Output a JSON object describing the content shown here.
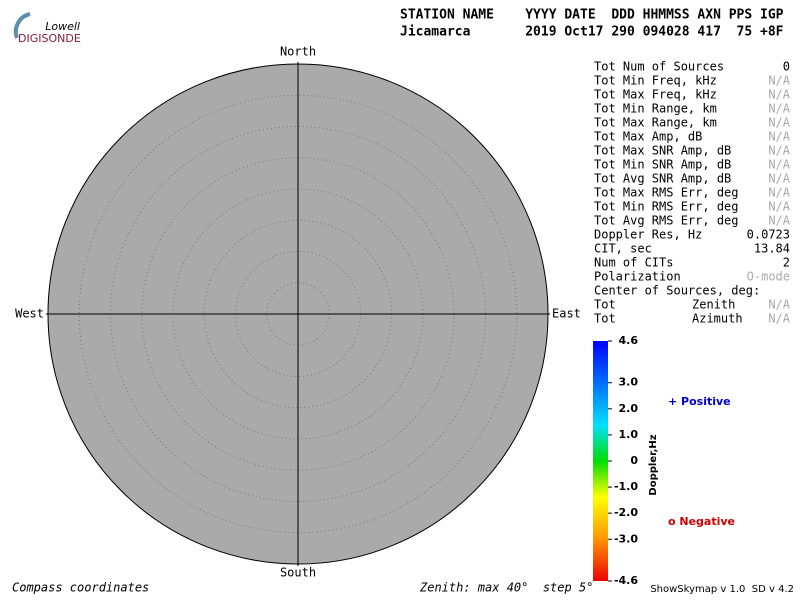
{
  "logo": {
    "line1": "Lowell",
    "line2": "DIGISONDE"
  },
  "header": {
    "labels": "STATION NAME    YYYY DATE  DDD HHMMSS AXN PPS IGP",
    "values": "Jicamarca       2019 Oct17 290 094028 417  75 +8F"
  },
  "compass": {
    "north": "North",
    "south": "South",
    "east": "East",
    "west": "West"
  },
  "stats": [
    {
      "label": "Tot Num of Sources",
      "value": "0"
    },
    {
      "label": "Tot Min Freq, kHz",
      "value": "N/A"
    },
    {
      "label": "Tot Max Freq, kHz",
      "value": "N/A"
    },
    {
      "label": "Tot Min Range, km",
      "value": "N/A"
    },
    {
      "label": "Tot Max Range, km",
      "value": "N/A"
    },
    {
      "label": "Tot Max Amp, dB",
      "value": "N/A"
    },
    {
      "label": "Tot Max SNR Amp, dB",
      "value": "N/A"
    },
    {
      "label": "Tot Min SNR Amp, dB",
      "value": "N/A"
    },
    {
      "label": "Tot Avg SNR Amp, dB",
      "value": "N/A"
    },
    {
      "label": "Tot Max RMS Err, deg",
      "value": "N/A"
    },
    {
      "label": "Tot Min RMS Err, deg",
      "value": "N/A"
    },
    {
      "label": "Tot Avg RMS Err, deg",
      "value": "N/A"
    },
    {
      "label": "Doppler Res, Hz",
      "value": "0.0723"
    },
    {
      "label": "CIT, sec",
      "value": "13.84"
    },
    {
      "label": "Num of CITs",
      "value": "2"
    },
    {
      "label": "Polarization",
      "value": "O-mode"
    }
  ],
  "center": {
    "title": "Center of Sources, deg:",
    "rows": [
      {
        "label": "Tot",
        "name": "Zenith",
        "value": "N/A"
      },
      {
        "label": "Tot",
        "name": "Azimuth",
        "value": "N/A"
      }
    ]
  },
  "colorbar": {
    "label": "Doppler,Hz",
    "range": [
      -4.6,
      4.6
    ],
    "ticks": [
      4.6,
      {
        "value": 3,
        "label": "3.0"
      },
      {
        "value": 2,
        "label": "2.0"
      },
      {
        "value": 1,
        "label": "1.0"
      },
      0,
      {
        "value": -1,
        "label": "-1.0"
      },
      {
        "value": -2,
        "label": "-2.0"
      },
      {
        "value": -3,
        "label": "-3.0"
      },
      -4.6
    ]
  },
  "legend": {
    "positive": "+ Positive",
    "negative": "o Negative"
  },
  "footer": {
    "left": "Compass coordinates",
    "middle": "Zenith: max 40°  step 5°",
    "right": "ShowSkymap v 1.0  SD v 4.2"
  }
}
